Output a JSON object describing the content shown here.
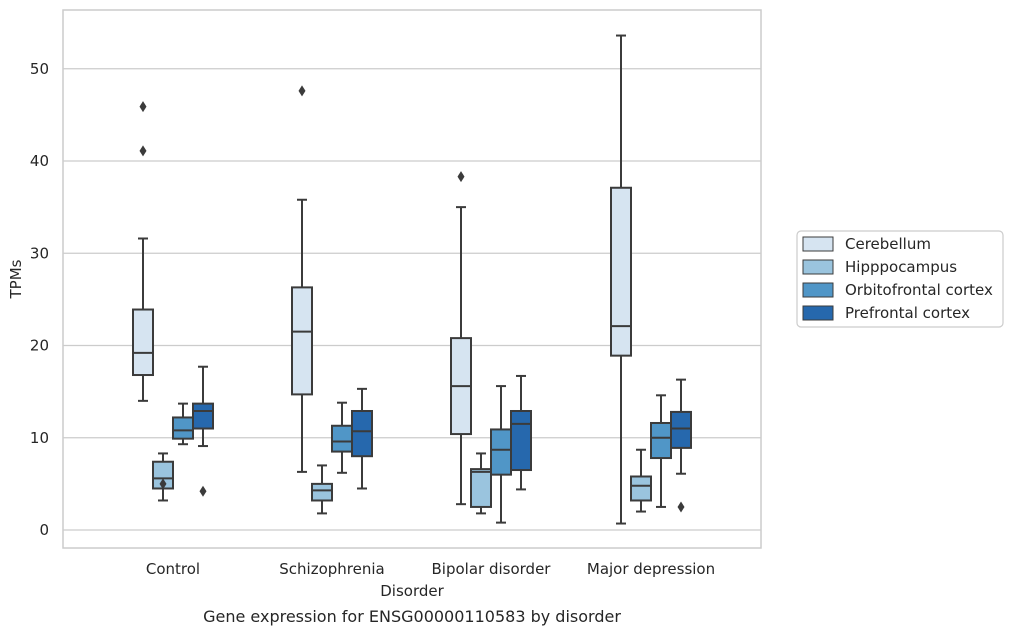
{
  "chart_data": {
    "type": "box",
    "caption": "Gene expression for ENSG00000110583 by disorder",
    "xlabel": "Disorder",
    "ylabel": "TPMs",
    "ylim": [
      -2,
      56
    ],
    "yticks": [
      0,
      10,
      20,
      30,
      40,
      50
    ],
    "grid": true,
    "legend_placement": "right",
    "categories": [
      "Control",
      "Schizophrenia",
      "Bipolar disorder",
      "Major depression"
    ],
    "series": [
      {
        "name": "Cerebellum",
        "color": "#d6e4f1",
        "boxes": [
          {
            "whisker_low": 14.0,
            "q1": 16.8,
            "median": 19.2,
            "q3": 23.9,
            "whisker_high": 31.6,
            "outliers": [
              41.1,
              45.9
            ]
          },
          {
            "whisker_low": 6.3,
            "q1": 14.7,
            "median": 21.5,
            "q3": 26.3,
            "whisker_high": 35.8,
            "outliers": [
              47.6
            ]
          },
          {
            "whisker_low": 2.8,
            "q1": 10.4,
            "median": 15.6,
            "q3": 20.8,
            "whisker_high": 35.0,
            "outliers": [
              38.3
            ]
          },
          {
            "whisker_low": 0.7,
            "q1": 18.9,
            "median": 22.1,
            "q3": 37.1,
            "whisker_high": 53.6,
            "outliers": []
          }
        ]
      },
      {
        "name": "Hipppocampus",
        "color": "#9ac4de",
        "boxes": [
          {
            "whisker_low": 3.2,
            "q1": 4.5,
            "median": 5.6,
            "q3": 7.4,
            "whisker_high": 8.3,
            "outliers": [
              5.0
            ]
          },
          {
            "whisker_low": 1.8,
            "q1": 3.2,
            "median": 4.3,
            "q3": 5.0,
            "whisker_high": 7.0,
            "outliers": []
          },
          {
            "whisker_low": 1.8,
            "q1": 2.5,
            "median": 6.3,
            "q3": 6.6,
            "whisker_high": 8.3,
            "outliers": []
          },
          {
            "whisker_low": 2.0,
            "q1": 3.2,
            "median": 4.8,
            "q3": 5.8,
            "whisker_high": 8.7,
            "outliers": []
          }
        ]
      },
      {
        "name": "Orbitofrontal cortex",
        "color": "#5096c7",
        "boxes": [
          {
            "whisker_low": 9.3,
            "q1": 9.9,
            "median": 10.8,
            "q3": 12.2,
            "whisker_high": 13.7,
            "outliers": []
          },
          {
            "whisker_low": 6.2,
            "q1": 8.5,
            "median": 9.6,
            "q3": 11.3,
            "whisker_high": 13.8,
            "outliers": []
          },
          {
            "whisker_low": 0.8,
            "q1": 6.0,
            "median": 8.7,
            "q3": 10.9,
            "whisker_high": 15.6,
            "outliers": []
          },
          {
            "whisker_low": 2.5,
            "q1": 7.8,
            "median": 10.0,
            "q3": 11.6,
            "whisker_high": 14.6,
            "outliers": []
          }
        ]
      },
      {
        "name": "Prefrontal cortex",
        "color": "#2668ad",
        "boxes": [
          {
            "whisker_low": 9.1,
            "q1": 11.0,
            "median": 12.9,
            "q3": 13.7,
            "whisker_high": 17.7,
            "outliers": [
              4.2
            ]
          },
          {
            "whisker_low": 4.5,
            "q1": 8.0,
            "median": 10.7,
            "q3": 12.9,
            "whisker_high": 15.3,
            "outliers": []
          },
          {
            "whisker_low": 4.4,
            "q1": 6.5,
            "median": 11.5,
            "q3": 12.9,
            "whisker_high": 16.7,
            "outliers": []
          },
          {
            "whisker_low": 6.1,
            "q1": 8.9,
            "median": 11.0,
            "q3": 12.8,
            "whisker_high": 16.3,
            "outliers": [
              2.5
            ]
          }
        ]
      }
    ]
  }
}
